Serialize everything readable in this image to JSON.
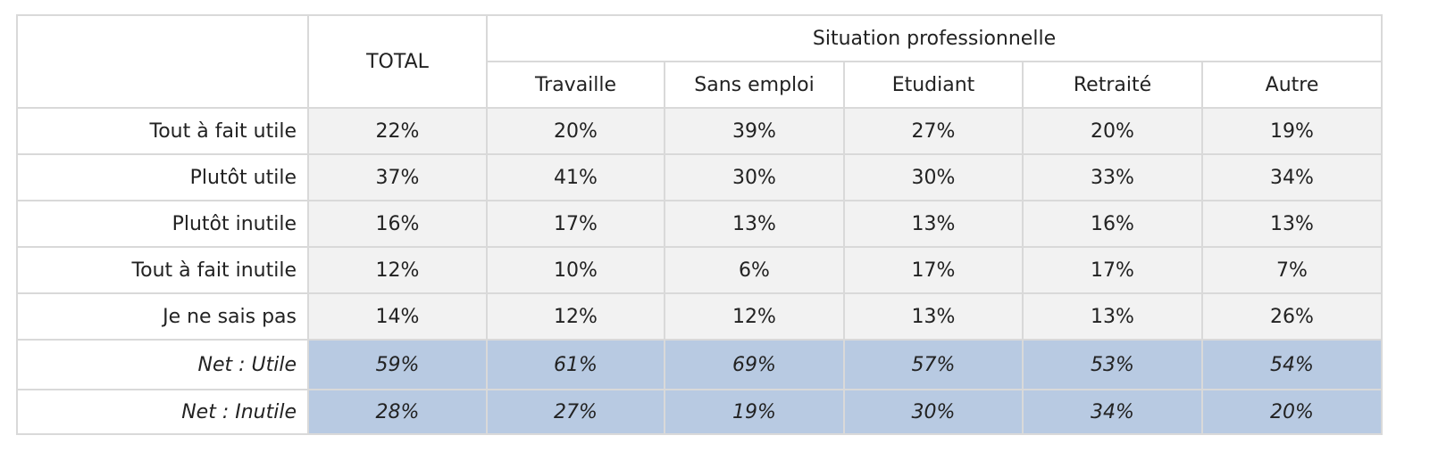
{
  "chart_data": {
    "type": "table",
    "header": {
      "total": "TOTAL",
      "group": "Situation professionnelle",
      "columns": [
        "Travaille",
        "Sans emploi",
        "Etudiant",
        "Retraité",
        "Autre"
      ]
    },
    "rows": [
      {
        "label": "Tout à fait utile",
        "values": [
          "22%",
          "20%",
          "39%",
          "27%",
          "20%",
          "19%"
        ],
        "net": false
      },
      {
        "label": "Plutôt utile",
        "values": [
          "37%",
          "41%",
          "30%",
          "30%",
          "33%",
          "34%"
        ],
        "net": false
      },
      {
        "label": "Plutôt inutile",
        "values": [
          "16%",
          "17%",
          "13%",
          "13%",
          "16%",
          "13%"
        ],
        "net": false
      },
      {
        "label": "Tout à fait inutile",
        "values": [
          "12%",
          "10%",
          "6%",
          "17%",
          "17%",
          "7%"
        ],
        "net": false
      },
      {
        "label": "Je ne sais pas",
        "values": [
          "14%",
          "12%",
          "12%",
          "13%",
          "13%",
          "26%"
        ],
        "net": false
      },
      {
        "label": "Net : Utile",
        "values": [
          "59%",
          "61%",
          "69%",
          "57%",
          "53%",
          "54%"
        ],
        "net": true
      },
      {
        "label": "Net : Inutile",
        "values": [
          "28%",
          "27%",
          "19%",
          "30%",
          "34%",
          "20%"
        ],
        "net": true
      }
    ],
    "colors": {
      "grid": "#d9d9d9",
      "data_fill": "#f2f2f2",
      "net_fill": "#b8cae2"
    }
  }
}
